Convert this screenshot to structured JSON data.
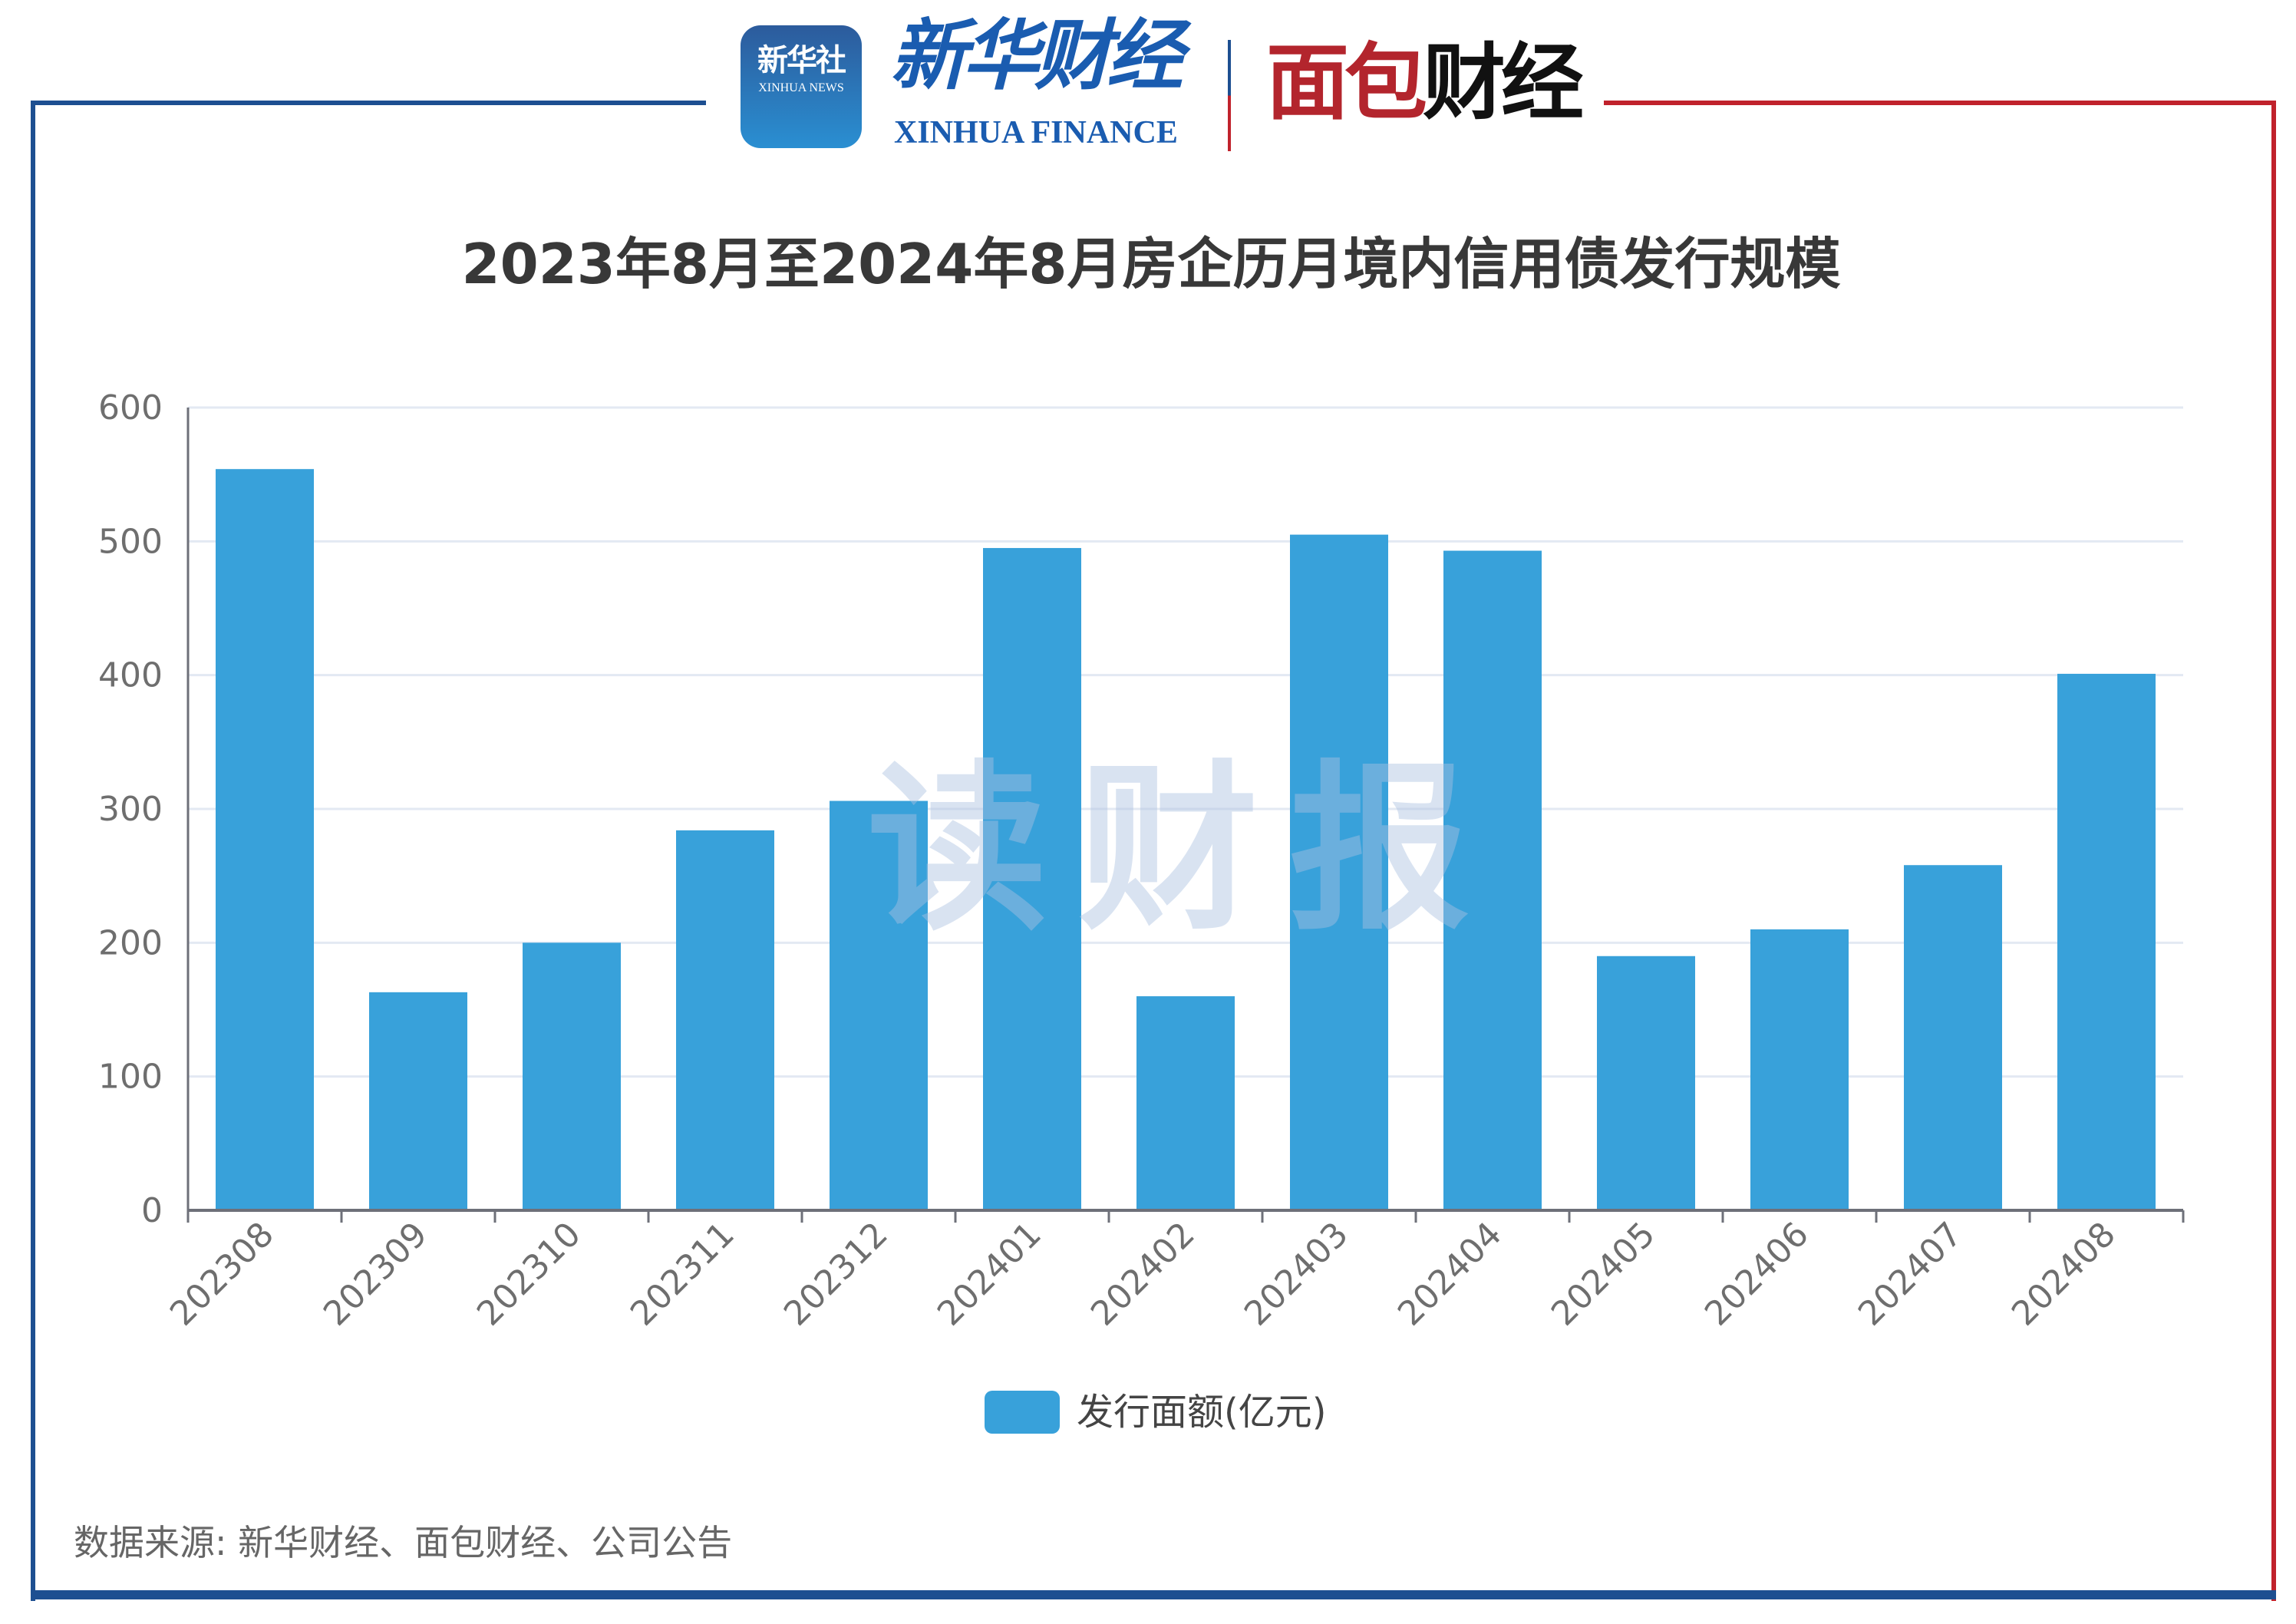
{
  "header": {
    "logo_xinhua_news_cn": "新华社",
    "logo_xinhua_news_en": "XINHUA NEWS",
    "logo_xinhua_finance_cn": "新华财经",
    "logo_xinhua_finance_en": "XINHUA FINANCE",
    "logo_mianbao_red": "面包",
    "logo_mianbao_black": "财经"
  },
  "watermark": "读财报",
  "source": "数据来源: 新华财经、面包财经、公司公告",
  "colors": {
    "bar": "#38a1da",
    "frame_blue": "#1d4f91",
    "frame_red": "#c0222c",
    "grid": "#e3e9f3"
  },
  "chart_data": {
    "type": "bar",
    "title": "2023年8月至2024年8月房企历月境内信用债发行规模",
    "categories": [
      "202308",
      "202309",
      "202310",
      "202311",
      "202312",
      "202401",
      "202402",
      "202403",
      "202404",
      "202405",
      "202406",
      "202407",
      "202408"
    ],
    "series": [
      {
        "name": "发行面额(亿元)",
        "values": [
          554,
          163,
          200,
          284,
          306,
          495,
          160,
          505,
          493,
          190,
          210,
          258,
          401
        ]
      }
    ],
    "yticks": [
      "0",
      "100",
      "200",
      "300",
      "400",
      "500",
      "600"
    ],
    "ylim": [
      0,
      600
    ],
    "grid": true,
    "legend": "bottom-center",
    "xlabel": "",
    "ylabel": ""
  }
}
